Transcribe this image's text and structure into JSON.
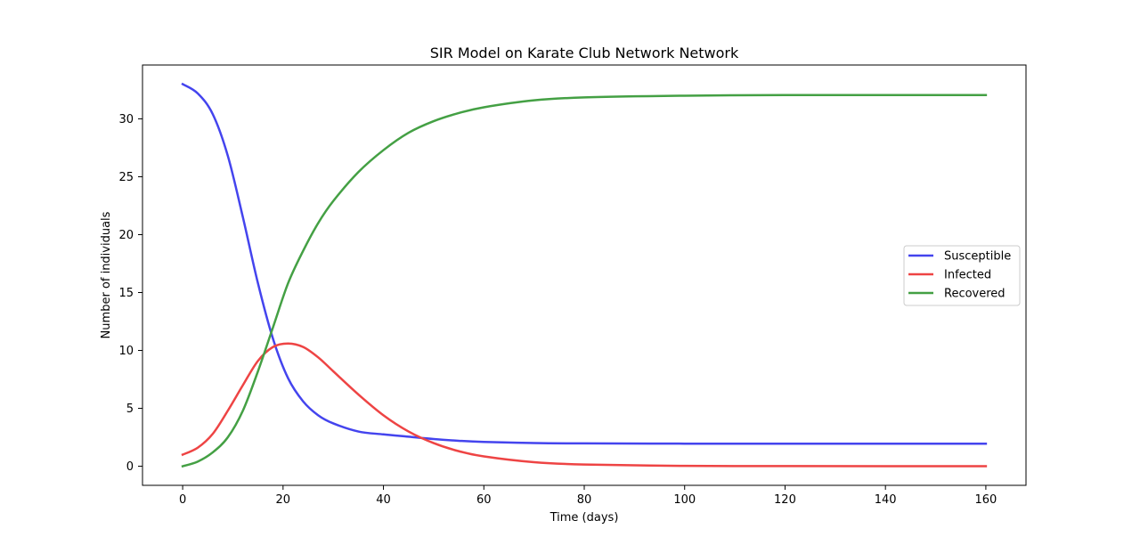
{
  "chart_data": {
    "type": "line",
    "title": "SIR Model on Karate Club Network Network",
    "xlabel": "Time (days)",
    "ylabel": "Number of individuals",
    "xlim": [
      -8,
      168
    ],
    "ylim": [
      -1.65,
      34.65
    ],
    "xticks": [
      0,
      20,
      40,
      60,
      80,
      100,
      120,
      140,
      160
    ],
    "yticks": [
      0,
      5,
      10,
      15,
      20,
      25,
      30
    ],
    "grid": false,
    "legend_position": "center-right",
    "series": [
      {
        "name": "Susceptible",
        "color": "#4444ee",
        "x": [
          0,
          3,
          6,
          9,
          12,
          15,
          18,
          21,
          24,
          27,
          30,
          35,
          40,
          45,
          50,
          55,
          60,
          70,
          80,
          100,
          120,
          140,
          160
        ],
        "values": [
          33,
          32.2,
          30.4,
          26.8,
          21.5,
          15.8,
          11.0,
          7.6,
          5.6,
          4.4,
          3.7,
          3.0,
          2.75,
          2.55,
          2.35,
          2.2,
          2.1,
          2.0,
          1.97,
          1.95,
          1.95,
          1.95,
          1.95
        ]
      },
      {
        "name": "Infected",
        "color": "#ee4444",
        "x": [
          0,
          3,
          6,
          9,
          12,
          15,
          18,
          21,
          24,
          27,
          30,
          35,
          40,
          45,
          50,
          55,
          60,
          70,
          80,
          100,
          120,
          140,
          160
        ],
        "values": [
          1,
          1.6,
          2.8,
          4.8,
          7.0,
          9.1,
          10.3,
          10.6,
          10.3,
          9.4,
          8.2,
          6.2,
          4.4,
          3.0,
          2.0,
          1.3,
          0.85,
          0.35,
          0.15,
          0.03,
          0.01,
          0.0,
          0.0
        ]
      },
      {
        "name": "Recovered",
        "color": "#44a044",
        "x": [
          0,
          3,
          6,
          9,
          12,
          15,
          18,
          21,
          24,
          27,
          30,
          35,
          40,
          45,
          50,
          55,
          60,
          70,
          80,
          100,
          120,
          140,
          160
        ],
        "values": [
          0,
          0.4,
          1.2,
          2.5,
          4.8,
          8.2,
          12.0,
          15.8,
          18.6,
          21.0,
          22.9,
          25.4,
          27.3,
          28.8,
          29.8,
          30.5,
          31.0,
          31.6,
          31.85,
          32.0,
          32.05,
          32.05,
          32.05
        ]
      }
    ]
  }
}
